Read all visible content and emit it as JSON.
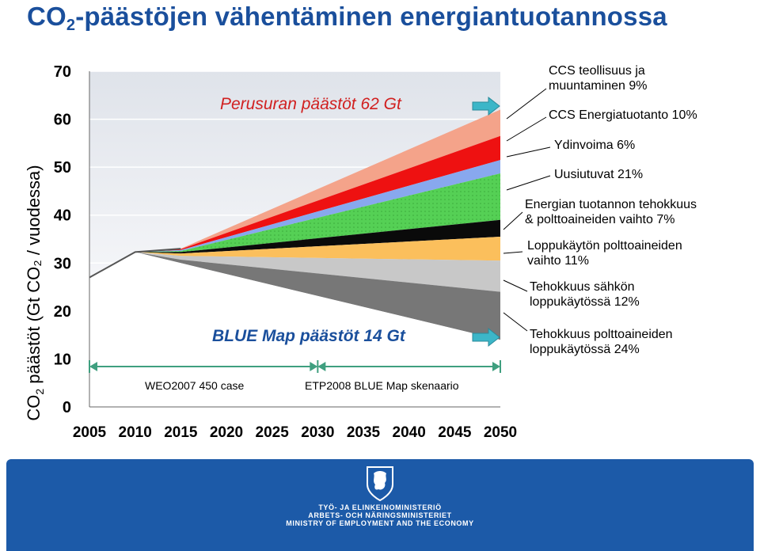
{
  "title": {
    "main": "CO",
    "sub": "2",
    "rest": "-päästöjen vähentäminen energiantuotannossa"
  },
  "ylabel": {
    "pre": "CO",
    "sub": "2",
    "post": " päästöt (Gt CO₂ / vuodessa)"
  },
  "notes": {
    "baseline": "Perusuran päästöt 62 Gt",
    "bluemap": "BLUE Map päästöt 14 Gt",
    "weo": "WEO2007 450 case",
    "etp": "ETP2008 BLUE Map skenaario"
  },
  "annotations": [
    "CCS teollisuus ja\nmuuntaminen 9%",
    "CCS Energiatuotanto 10%",
    "Ydinvoima 6%",
    "Uusiutuvat 21%",
    "Energian tuotannon tehokkuus\n& polttoaineiden vaihto 7%",
    "Loppukäytön polttoaineiden\nvaihto 11%",
    "Tehokkuus sähkön\nloppukäytössä 12%",
    "Tehokkuus polttoaineiden\nloppukäytössä 24%"
  ],
  "footer": {
    "line1": "TYÖ- JA ELINKEINOMINISTERIÖ",
    "line2": "ARBETS- OCH NÄRINGSMINISTERIET",
    "line3": "MINISTRY OF EMPLOYMENT AND THE ECONOMY"
  },
  "chart_data": {
    "type": "area",
    "x": [
      2005,
      2010,
      2015,
      2050
    ],
    "ylim": [
      0,
      70
    ],
    "xlim": [
      2005,
      2050
    ],
    "y_ticks": [
      0,
      10,
      20,
      30,
      40,
      50,
      60,
      70
    ],
    "x_ticks": [
      2005,
      2010,
      2015,
      2020,
      2025,
      2030,
      2035,
      2040,
      2045,
      2050
    ],
    "baseline_2050": 62,
    "bluemap_2050": 14,
    "series": [
      {
        "name": "CCS teollisuus ja muuntaminen 9%",
        "color": "#f4a38a",
        "values": [
          27,
          32.3,
          33,
          62
        ]
      },
      {
        "name": "CCS Energiatuotanto 10%",
        "color": "#ee1111",
        "values": [
          27,
          32.3,
          32.9,
          56.5
        ]
      },
      {
        "name": "Ydinvoima 6%",
        "color": "#88a8ee",
        "values": [
          27,
          32.3,
          32.7,
          51.5
        ]
      },
      {
        "name": "Uusiutuvat 21%",
        "color": "#55d055",
        "values": [
          27,
          32.3,
          32.5,
          48.7
        ]
      },
      {
        "name": "Energian tuotannon tehokkuus & polttoaineiden vaihto 7%",
        "color": "#0a0a0a",
        "values": [
          27,
          32.3,
          32.3,
          39
        ]
      },
      {
        "name": "Loppukäytön polttoaineiden vaihto 11%",
        "color": "#fbbf5c",
        "values": [
          27,
          32.3,
          32.0,
          35.5
        ]
      },
      {
        "name": "Tehokkuus sähkön loppukäytössä 12%",
        "color": "#c8c8c8",
        "values": [
          27,
          32.3,
          31.5,
          30.5
        ]
      },
      {
        "name": "Tehokkuus polttoaineiden loppukäytössä 24%",
        "color": "#777777",
        "values": [
          27,
          32.3,
          30.7,
          24
        ]
      },
      {
        "name": "",
        "color": "#ffffff",
        "values": [
          27,
          32.3,
          30.0,
          14
        ]
      }
    ],
    "ranges": [
      {
        "label": "WEO2007 450 case",
        "from": 2005,
        "to": 2030
      },
      {
        "label": "ETP2008 BLUE Map skenaario",
        "from": 2030,
        "to": 2050
      }
    ]
  }
}
